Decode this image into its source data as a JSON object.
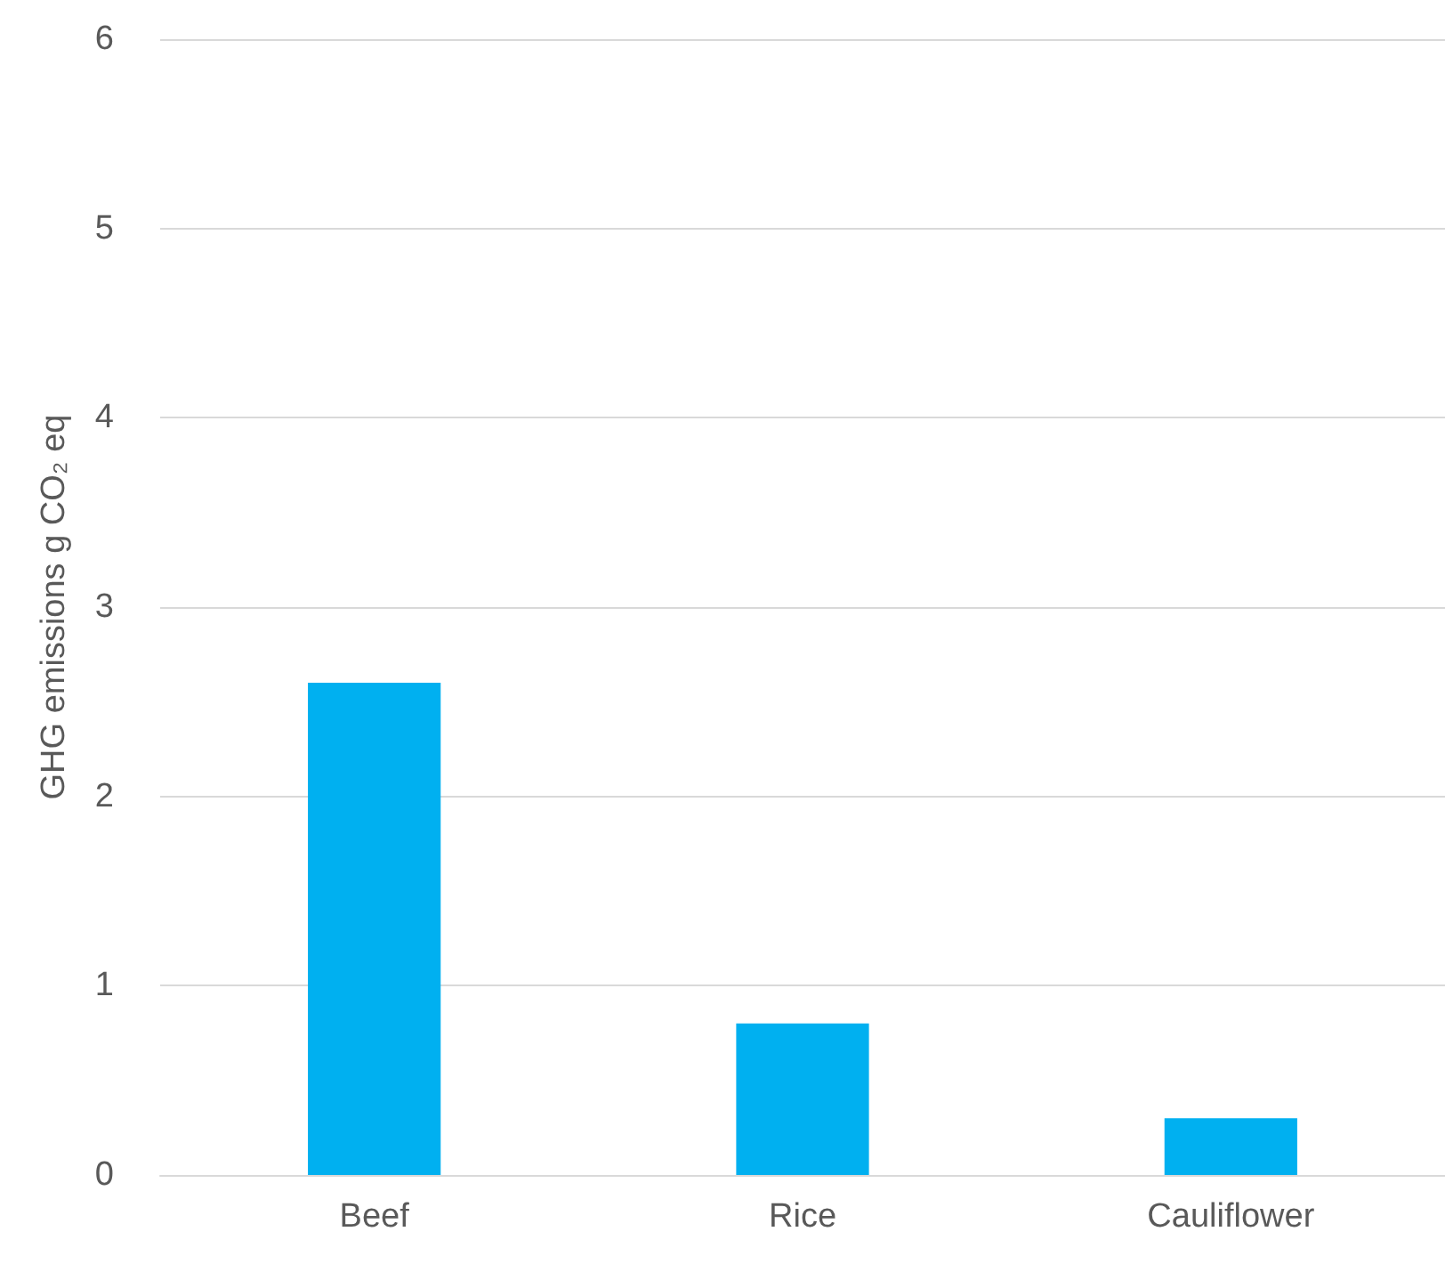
{
  "chart_data": {
    "type": "bar",
    "ylabel": "GHG emissions g CO₂ eq",
    "categories": [
      "Beef",
      "Rice",
      "Cauliflower"
    ],
    "values": [
      2.6,
      0.8,
      0.3
    ],
    "color": "#00b0f0",
    "ylim": [
      0,
      6
    ],
    "yticks": [
      0,
      1,
      2,
      3,
      4,
      5,
      6
    ],
    "grid": "y"
  }
}
